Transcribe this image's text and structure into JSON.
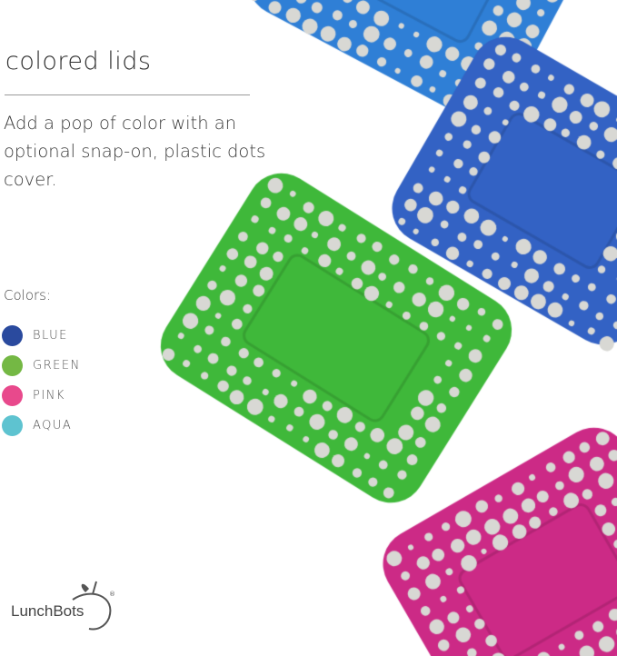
{
  "heading": "colored lids",
  "description": "Add a pop of color with an optional snap-on, plastic dots cover.",
  "colors_label": "Colors:",
  "colors": [
    {
      "label": "BLUE",
      "hex": "#2a4a9e"
    },
    {
      "label": "GREEN",
      "hex": "#74b844"
    },
    {
      "label": "PINK",
      "hex": "#e8498c"
    },
    {
      "label": "AQUA",
      "hex": "#5ec3d0"
    }
  ],
  "lid_colors": {
    "aqua": "#2f7fd6",
    "blue": "#3362c4",
    "green": "#3fb83a",
    "pink": "#cc2a86"
  },
  "brand": {
    "name": "LunchBots",
    "mark": "®"
  }
}
